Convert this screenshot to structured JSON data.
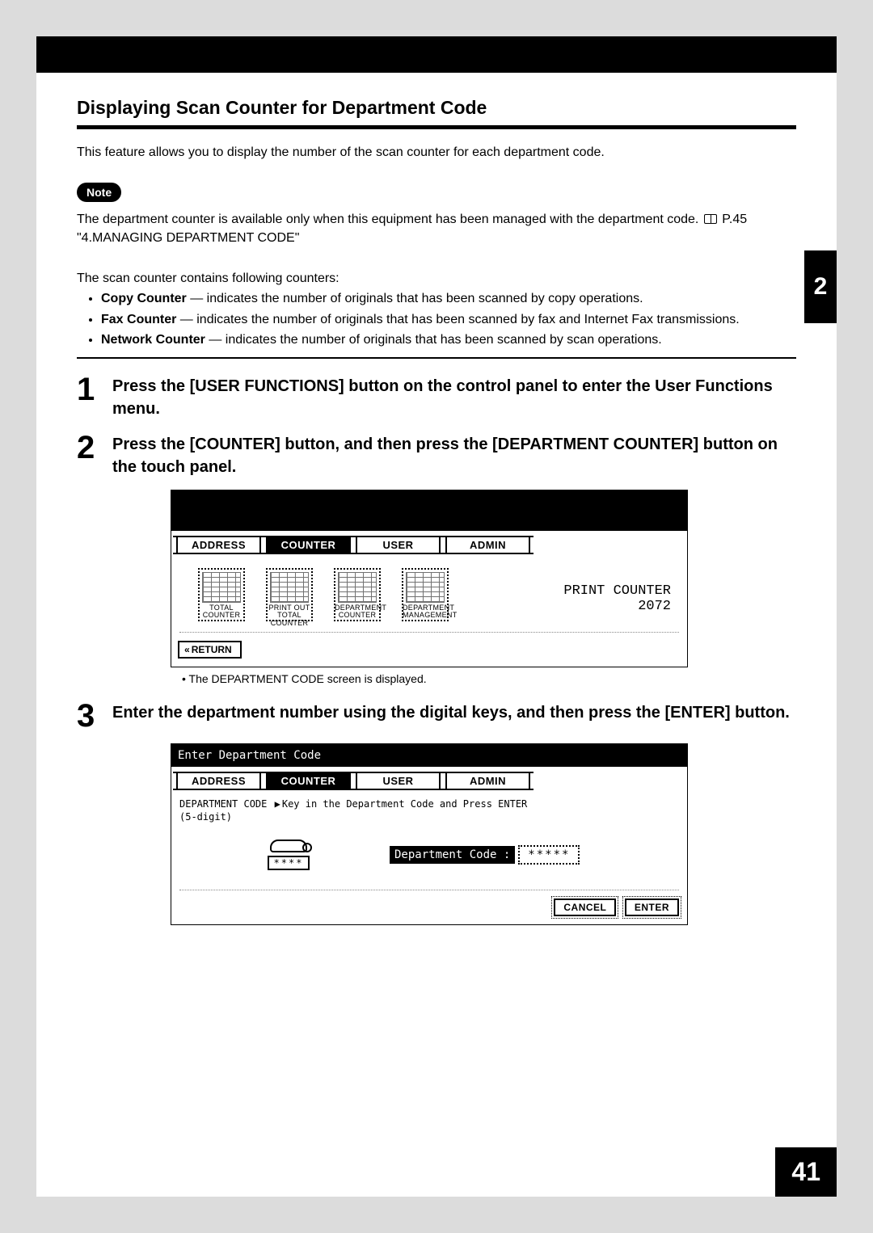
{
  "chapter_tab": "2",
  "page_number": "41",
  "heading": "Displaying Scan Counter for Department Code",
  "intro": "This feature allows you to display the number of the scan counter for each department code.",
  "note_label": "Note",
  "note_text_before": "The department counter is available only when this equipment has been managed with the department code. ",
  "note_text_after": " P.45 \"4.MANAGING DEPARTMENT CODE\"",
  "counter_intro": "The scan counter contains following counters:",
  "counters": [
    {
      "name": "Copy Counter",
      "desc": " — indicates the number of originals that has been scanned by copy operations."
    },
    {
      "name": "Fax Counter",
      "desc": " — indicates the number of originals that has been scanned by fax and Internet Fax transmissions."
    },
    {
      "name": "Network Counter",
      "desc": " — indicates the number of originals that has been scanned by scan operations."
    }
  ],
  "steps": {
    "s1": {
      "num": "1",
      "text": "Press the [USER FUNCTIONS] button on the control panel to enter the User Functions menu."
    },
    "s2": {
      "num": "2",
      "text": "Press the [COUNTER] button, and then press the [DEPARTMENT COUNTER] button on the touch panel."
    },
    "s2_sub": "The DEPARTMENT CODE screen is displayed.",
    "s3": {
      "num": "3",
      "text": "Enter the department number using the digital keys, and then press the [ENTER] button."
    }
  },
  "screen1": {
    "tabs": [
      "ADDRESS",
      "COUNTER",
      "USER",
      "ADMIN"
    ],
    "selected_tab": 1,
    "icons": [
      {
        "line1": "TOTAL",
        "line2": "COUNTER"
      },
      {
        "line1": "PRINT OUT",
        "line2": "TOTAL COUNTER"
      },
      {
        "line1": "DEPARTMENT",
        "line2": "COUNTER"
      },
      {
        "line1": "DEPARTMENT",
        "line2": "MANAGEMENT"
      }
    ],
    "print_counter_label": "PRINT COUNTER",
    "print_counter_value": "2072",
    "return_btn": "RETURN"
  },
  "screen2": {
    "title": "Enter Department Code",
    "tabs": [
      "ADDRESS",
      "COUNTER",
      "USER",
      "ADMIN"
    ],
    "selected_tab": 1,
    "hint_label": "DEPARTMENT CODE",
    "hint_sub": "(5-digit)",
    "hint_text": "Key in the Department Code and Press ENTER",
    "kb_label": "****",
    "dept_label": "Department Code :",
    "dept_value": "*****",
    "cancel": "CANCEL",
    "enter": "ENTER"
  }
}
